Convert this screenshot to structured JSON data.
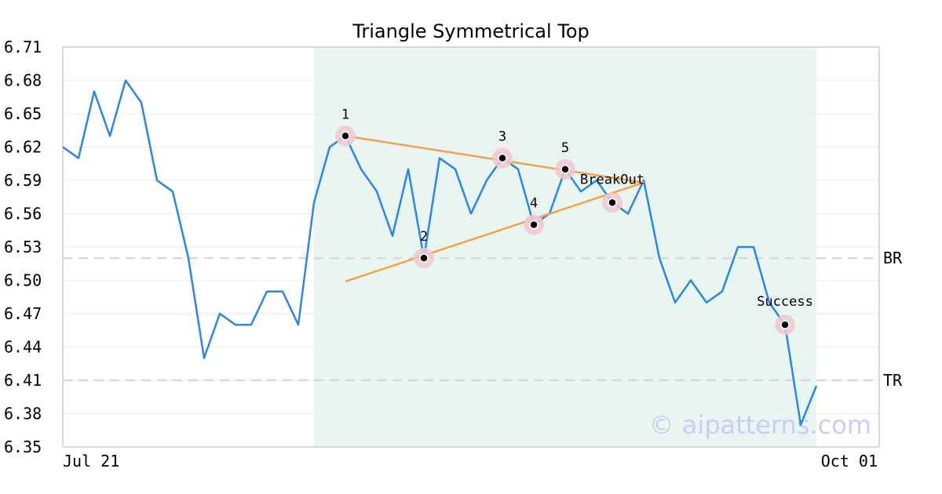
{
  "chart_data": {
    "type": "line",
    "title": "Triangle Symmetrical Top",
    "xlabel": "",
    "ylabel": "",
    "x_tick_labels": [
      "Jul 21",
      "Oct 01"
    ],
    "y_ticks": [
      "6.35",
      "6.38",
      "6.41",
      "6.44",
      "6.47",
      "6.50",
      "6.53",
      "6.56",
      "6.59",
      "6.62",
      "6.65",
      "6.68",
      "6.71"
    ],
    "ylim": [
      6.35,
      6.71
    ],
    "grid": true,
    "colors": {
      "price": "#2e86de",
      "trend": "#f5a04a",
      "highlight": "#e8f5f0",
      "ref": "#d8d8d8",
      "marker_ring": "#f0c8d0"
    },
    "series": [
      {
        "values": [
          6.62,
          6.61,
          6.67,
          6.63,
          6.68,
          6.66,
          6.59,
          6.58,
          6.52,
          6.43,
          6.47,
          6.46,
          6.46,
          6.49,
          6.49,
          6.46,
          6.57,
          6.62,
          6.63,
          6.6,
          6.58,
          6.54,
          6.6,
          6.52,
          6.61,
          6.6,
          6.56,
          6.59,
          6.61,
          6.6,
          6.55,
          6.56,
          6.6,
          6.58,
          6.59,
          6.57,
          6.56,
          6.59,
          6.52,
          6.48,
          6.5,
          6.48,
          6.49,
          6.53,
          6.53,
          6.48,
          6.46,
          6.37,
          6.405
        ]
      }
    ],
    "highlight_range": [
      16,
      48
    ],
    "pattern_points": [
      {
        "label": "1",
        "index": 18,
        "value": 6.63
      },
      {
        "label": "2",
        "index": 23,
        "value": 6.52
      },
      {
        "label": "3",
        "index": 28,
        "value": 6.61
      },
      {
        "label": "4",
        "index": 30,
        "value": 6.55
      },
      {
        "label": "5",
        "index": 32,
        "value": 6.6
      },
      {
        "label": "BreakOut",
        "index": 35,
        "value": 6.57
      },
      {
        "label": "Success",
        "index": 46,
        "value": 6.46
      }
    ],
    "trendlines": [
      {
        "from": [
          18,
          6.63
        ],
        "to": [
          37,
          6.588
        ]
      },
      {
        "from": [
          18,
          6.499
        ],
        "to": [
          37,
          6.588
        ]
      }
    ],
    "reference_lines": [
      {
        "label": "BR",
        "value": 6.52
      },
      {
        "label": "TR",
        "value": 6.41
      }
    ],
    "watermark": "© aipatterns.com"
  }
}
